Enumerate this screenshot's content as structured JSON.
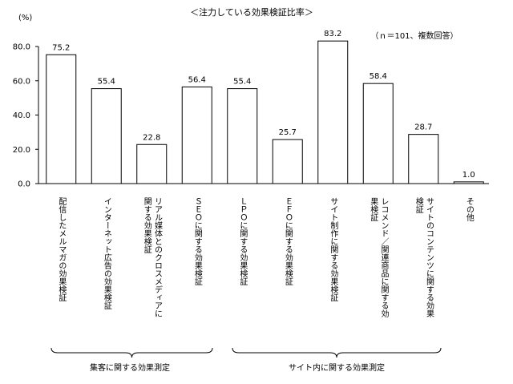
{
  "chart_data": {
    "type": "bar",
    "title": "＜注力している効果検証比率＞",
    "ylabel": "(%)",
    "note": "（ｎ＝101、複数回答）",
    "ylim": [
      0,
      80
    ],
    "yticks": [
      "0.0",
      "20.0",
      "40.0",
      "60.0",
      "80.0"
    ],
    "ytick_values": [
      0,
      20,
      40,
      60,
      80
    ],
    "value_labels": [
      "75.2",
      "55.4",
      "22.8",
      "56.4",
      "55.4",
      "25.7",
      "83.2",
      "58.4",
      "28.7",
      "1.0"
    ],
    "values": [
      75.2,
      55.4,
      22.8,
      56.4,
      55.4,
      25.7,
      83.2,
      58.4,
      28.7,
      1.0
    ],
    "categories": [
      [
        "配信したメルマガの効果検証"
      ],
      [
        "インターネット広告の効果検証"
      ],
      [
        "リアル媒体とのクロスメディアに",
        "関する効果検証"
      ],
      [
        "ＳＥＯに関する効果検証"
      ],
      [
        "ＬＰＯに関する効果検証"
      ],
      [
        "ＥＦＯに関する効果検証"
      ],
      [
        "サイト制作に関する効果検証"
      ],
      [
        "レコメンド／関連商品に関する効",
        "果検証"
      ],
      [
        "サイトのコンテンツに関する効果",
        "検証"
      ],
      [
        "その他"
      ]
    ],
    "groups": [
      {
        "label": "集客に関する効果測定"
      },
      {
        "label": "サイト内に関する効果測定"
      }
    ]
  }
}
